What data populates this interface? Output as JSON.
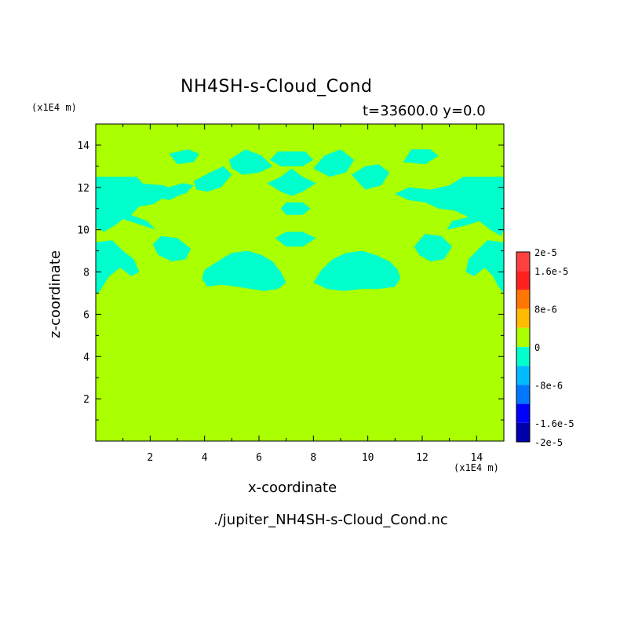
{
  "chart_data": {
    "type": "heatmap",
    "title": "NH4SH-s-Cloud_Cond",
    "subtitle": "t=33600.0 y=0.0",
    "xlabel": "x-coordinate",
    "ylabel": "z-coordinate",
    "x_scale_label": "(x1E4 m)",
    "y_scale_label": "(x1E4 m)",
    "footer": "./jupiter_NH4SH-s-Cloud_Cond.nc",
    "xlim": [
      0,
      15
    ],
    "ylim": [
      0,
      15
    ],
    "x_ticks": [
      2,
      4,
      6,
      8,
      10,
      12,
      14
    ],
    "y_ticks": [
      2,
      4,
      6,
      8,
      10,
      12,
      14
    ],
    "background_value": 0,
    "background_color": "#aaff00",
    "negative_region_color": "#00ffcc",
    "colorbar": {
      "labels": [
        "2e-5",
        "1.6e-5",
        "8e-6",
        "0",
        "-8e-6",
        "-1.6e-5",
        "-2e-5"
      ],
      "label_values": [
        2e-05,
        1.6e-05,
        8e-06,
        0,
        -8e-06,
        -1.6e-05,
        -2e-05
      ],
      "levels": [
        {
          "range": [
            1.6e-05,
            2e-05
          ],
          "color": "#ff4040"
        },
        {
          "range": [
            1.2e-05,
            1.6e-05
          ],
          "color": "#ff2020"
        },
        {
          "range": [
            8e-06,
            1.2e-05
          ],
          "color": "#ff7700"
        },
        {
          "range": [
            4e-06,
            8e-06
          ],
          "color": "#ffbb00"
        },
        {
          "range": [
            0,
            4e-06
          ],
          "color": "#aaff00"
        },
        {
          "range": [
            -4e-06,
            0
          ],
          "color": "#00ffcc"
        },
        {
          "range": [
            -8e-06,
            -4e-06
          ],
          "color": "#00bbff"
        },
        {
          "range": [
            -1.2e-05,
            -8e-06
          ],
          "color": "#0077ff"
        },
        {
          "range": [
            -1.6e-05,
            -1.2e-05
          ],
          "color": "#0000ff"
        },
        {
          "range": [
            -2e-05,
            -1.6e-05
          ],
          "color": "#0000aa"
        }
      ]
    },
    "negative_regions": [
      {
        "name": "left-cloud-band",
        "points": [
          [
            0,
            12.5
          ],
          [
            1.5,
            12.5
          ],
          [
            1.8,
            12.1
          ],
          [
            2.4,
            11.9
          ],
          [
            3.2,
            12.2
          ],
          [
            3.6,
            12.1
          ],
          [
            3.3,
            11.7
          ],
          [
            2.6,
            11.6
          ],
          [
            2.1,
            11.2
          ],
          [
            1.6,
            11.1
          ],
          [
            1.3,
            10.7
          ],
          [
            1.9,
            10.4
          ],
          [
            2.2,
            10
          ],
          [
            1.5,
            10.3
          ],
          [
            1.0,
            10.5
          ],
          [
            0.7,
            10.2
          ],
          [
            0.3,
            9.9
          ],
          [
            0,
            10.1
          ]
        ]
      },
      {
        "name": "left-lower-lobe",
        "points": [
          [
            0,
            9.4
          ],
          [
            0.6,
            9.5
          ],
          [
            1.0,
            9.0
          ],
          [
            1.4,
            8.6
          ],
          [
            1.6,
            8.0
          ],
          [
            1.3,
            7.8
          ],
          [
            0.9,
            8.2
          ],
          [
            0.5,
            7.8
          ],
          [
            0.3,
            7.4
          ],
          [
            0.1,
            7.0
          ],
          [
            0,
            7.0
          ]
        ]
      },
      {
        "name": "left-ring",
        "points": [
          [
            2.1,
            9.3
          ],
          [
            2.4,
            9.7
          ],
          [
            3.0,
            9.6
          ],
          [
            3.5,
            9.1
          ],
          [
            3.3,
            8.6
          ],
          [
            2.8,
            8.5
          ],
          [
            2.3,
            8.8
          ]
        ]
      },
      {
        "name": "left-arm-1",
        "points": [
          [
            1.5,
            12.2
          ],
          [
            2.5,
            12.1
          ],
          [
            3.2,
            11.7
          ],
          [
            2.7,
            11.4
          ],
          [
            2.0,
            11.6
          ]
        ]
      },
      {
        "name": "top-left-blob",
        "points": [
          [
            2.7,
            13.6
          ],
          [
            3.4,
            13.8
          ],
          [
            3.8,
            13.6
          ],
          [
            3.6,
            13.2
          ],
          [
            3.0,
            13.1
          ]
        ]
      },
      {
        "name": "top-left-arm",
        "points": [
          [
            3.6,
            12.3
          ],
          [
            4.2,
            12.7
          ],
          [
            4.7,
            13.0
          ],
          [
            5.0,
            12.6
          ],
          [
            4.6,
            12.0
          ],
          [
            4.1,
            11.8
          ],
          [
            3.7,
            11.9
          ]
        ]
      },
      {
        "name": "top-center-left-arm",
        "points": [
          [
            4.9,
            13.3
          ],
          [
            5.5,
            13.8
          ],
          [
            6.1,
            13.5
          ],
          [
            6.5,
            13.0
          ],
          [
            6.0,
            12.7
          ],
          [
            5.4,
            12.6
          ],
          [
            5.0,
            12.9
          ]
        ]
      },
      {
        "name": "center-top-bar",
        "points": [
          [
            6.4,
            13.3
          ],
          [
            6.7,
            13.7
          ],
          [
            7.7,
            13.7
          ],
          [
            8.0,
            13.3
          ],
          [
            7.6,
            13.0
          ],
          [
            6.8,
            13.0
          ]
        ]
      },
      {
        "name": "center-inverted-triangle",
        "points": [
          [
            6.3,
            12.2
          ],
          [
            6.8,
            12.5
          ],
          [
            7.2,
            12.9
          ],
          [
            7.6,
            12.5
          ],
          [
            8.1,
            12.2
          ],
          [
            7.6,
            11.8
          ],
          [
            7.2,
            11.6
          ],
          [
            6.8,
            11.8
          ]
        ]
      },
      {
        "name": "top-center-right-arm",
        "points": [
          [
            8.0,
            12.9
          ],
          [
            8.4,
            13.5
          ],
          [
            9.0,
            13.8
          ],
          [
            9.5,
            13.3
          ],
          [
            9.2,
            12.7
          ],
          [
            8.6,
            12.5
          ]
        ]
      },
      {
        "name": "top-right-arm",
        "points": [
          [
            9.4,
            12.6
          ],
          [
            9.9,
            13.0
          ],
          [
            10.4,
            13.1
          ],
          [
            10.8,
            12.7
          ],
          [
            10.5,
            12.1
          ],
          [
            9.9,
            11.9
          ]
        ]
      },
      {
        "name": "top-right-blob",
        "points": [
          [
            11.3,
            13.2
          ],
          [
            11.6,
            13.8
          ],
          [
            12.3,
            13.8
          ],
          [
            12.6,
            13.5
          ],
          [
            12.1,
            13.1
          ]
        ]
      },
      {
        "name": "right-cloud-band",
        "points": [
          [
            15,
            12.5
          ],
          [
            13.5,
            12.5
          ],
          [
            13.0,
            12.1
          ],
          [
            12.3,
            11.9
          ],
          [
            11.5,
            12.0
          ],
          [
            11.0,
            11.7
          ],
          [
            11.5,
            11.4
          ],
          [
            12.1,
            11.3
          ],
          [
            12.6,
            11.0
          ],
          [
            13.2,
            10.9
          ],
          [
            13.7,
            10.6
          ],
          [
            13.1,
            10.4
          ],
          [
            12.9,
            10.0
          ],
          [
            13.6,
            10.2
          ],
          [
            14.1,
            10.4
          ],
          [
            14.5,
            10.0
          ],
          [
            14.9,
            9.7
          ],
          [
            15,
            10.0
          ]
        ]
      },
      {
        "name": "right-lower-lobe",
        "points": [
          [
            15,
            9.4
          ],
          [
            14.4,
            9.5
          ],
          [
            14.0,
            9.0
          ],
          [
            13.7,
            8.6
          ],
          [
            13.6,
            8.0
          ],
          [
            13.9,
            7.8
          ],
          [
            14.3,
            8.2
          ],
          [
            14.6,
            7.8
          ],
          [
            14.8,
            7.3
          ],
          [
            15,
            7.0
          ]
        ]
      },
      {
        "name": "right-ring",
        "points": [
          [
            11.7,
            9.2
          ],
          [
            12.1,
            9.8
          ],
          [
            12.7,
            9.7
          ],
          [
            13.1,
            9.2
          ],
          [
            12.8,
            8.6
          ],
          [
            12.3,
            8.5
          ],
          [
            11.9,
            8.8
          ]
        ]
      },
      {
        "name": "center-diamond",
        "points": [
          [
            6.8,
            11.0
          ],
          [
            7.0,
            11.3
          ],
          [
            7.6,
            11.3
          ],
          [
            7.9,
            11.0
          ],
          [
            7.6,
            10.7
          ],
          [
            7.0,
            10.7
          ]
        ]
      },
      {
        "name": "center-lens",
        "points": [
          [
            6.6,
            9.6
          ],
          [
            7.0,
            9.9
          ],
          [
            7.6,
            9.9
          ],
          [
            8.1,
            9.6
          ],
          [
            7.6,
            9.2
          ],
          [
            7.0,
            9.2
          ]
        ]
      },
      {
        "name": "left-large-cloud",
        "points": [
          [
            3.9,
            7.7
          ],
          [
            4.0,
            8.1
          ],
          [
            4.6,
            8.6
          ],
          [
            5.0,
            8.9
          ],
          [
            5.6,
            9.0
          ],
          [
            6.1,
            8.8
          ],
          [
            6.5,
            8.5
          ],
          [
            6.8,
            8.0
          ],
          [
            7.0,
            7.5
          ],
          [
            6.7,
            7.2
          ],
          [
            6.2,
            7.1
          ],
          [
            5.7,
            7.2
          ],
          [
            5.2,
            7.3
          ],
          [
            4.6,
            7.4
          ],
          [
            4.1,
            7.3
          ]
        ]
      },
      {
        "name": "right-large-cloud",
        "points": [
          [
            8.0,
            7.5
          ],
          [
            8.3,
            8.1
          ],
          [
            8.7,
            8.6
          ],
          [
            9.2,
            8.9
          ],
          [
            9.8,
            9.0
          ],
          [
            10.3,
            8.8
          ],
          [
            10.8,
            8.5
          ],
          [
            11.1,
            8.1
          ],
          [
            11.2,
            7.7
          ],
          [
            11.0,
            7.3
          ],
          [
            10.4,
            7.2
          ],
          [
            9.8,
            7.2
          ],
          [
            9.1,
            7.1
          ],
          [
            8.5,
            7.2
          ]
        ]
      }
    ]
  }
}
